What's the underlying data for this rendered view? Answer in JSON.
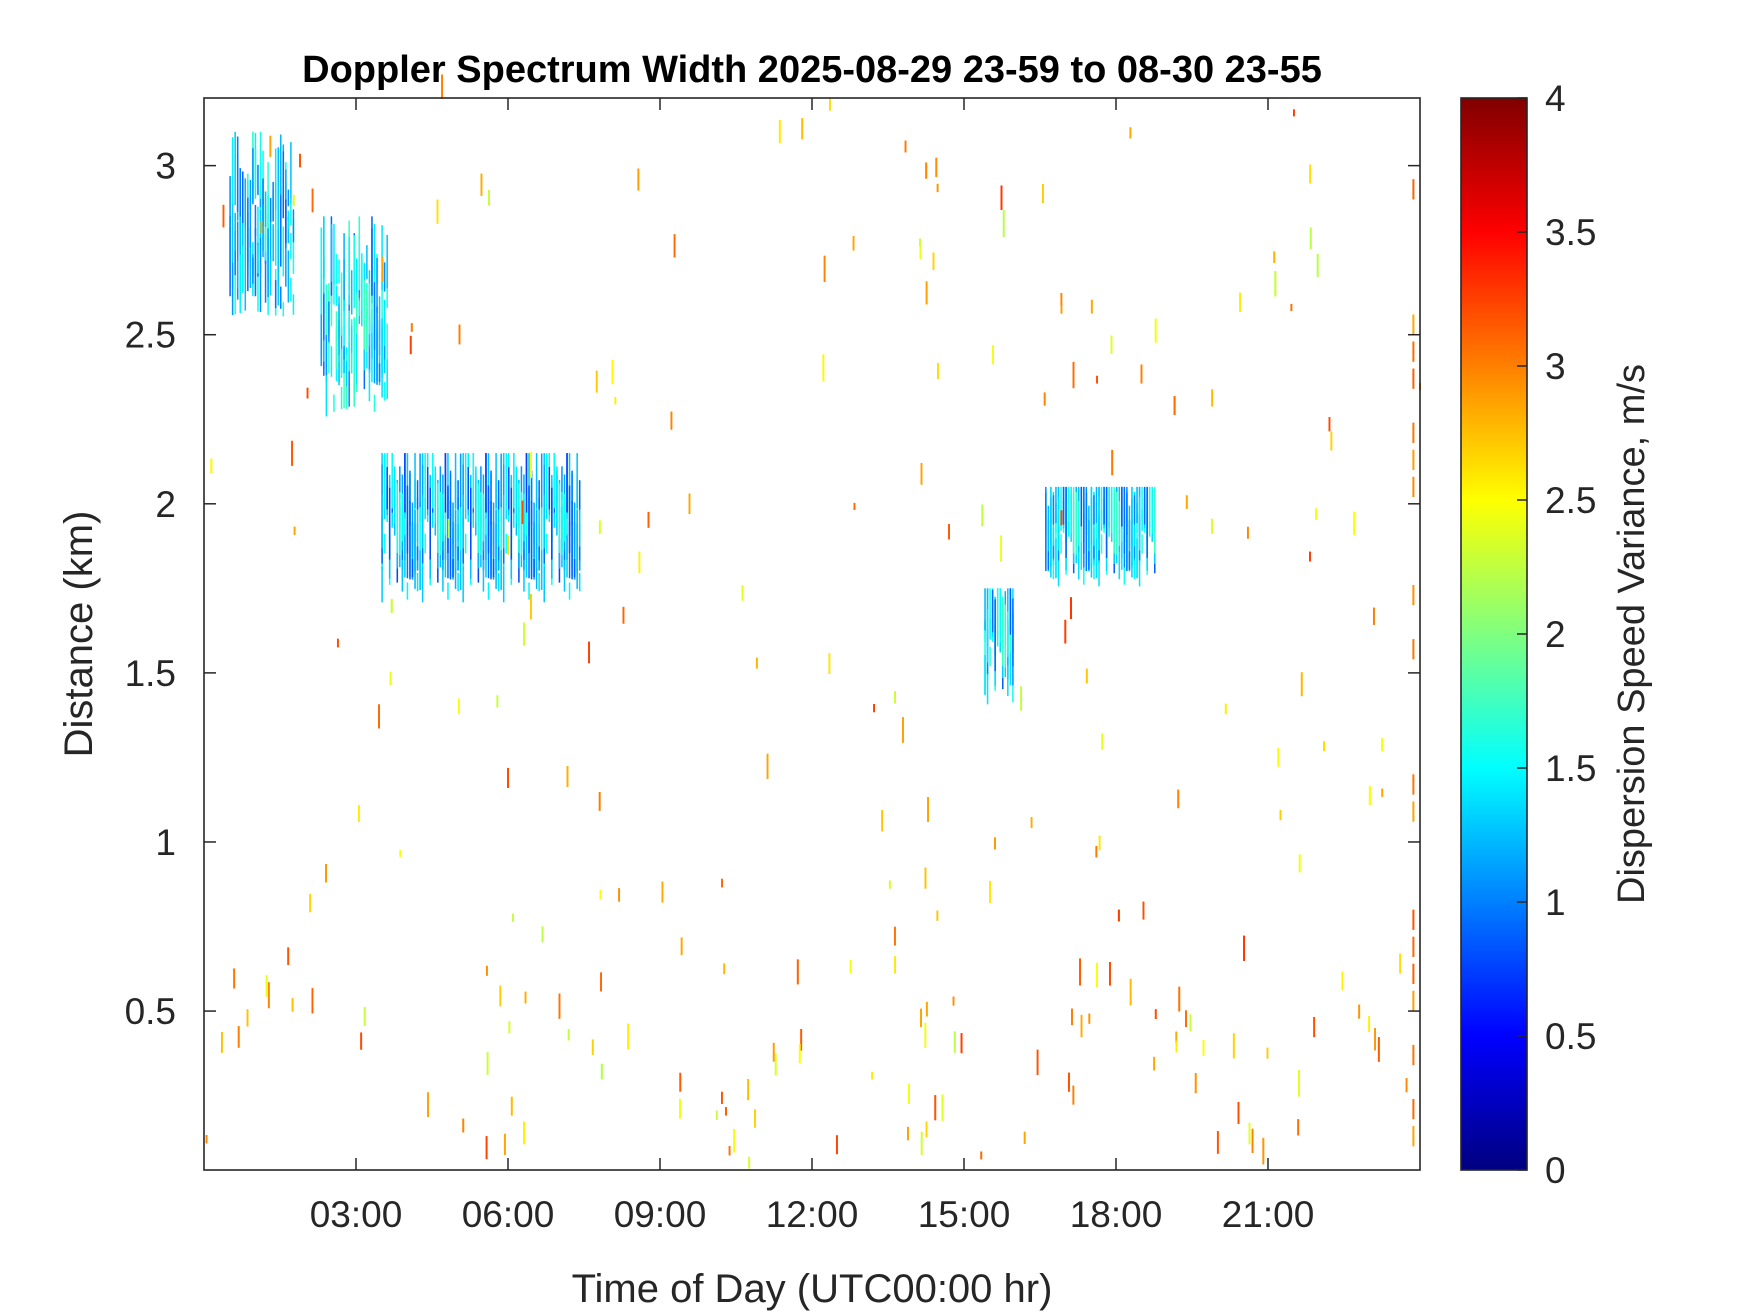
{
  "chart_data": {
    "type": "heatmap",
    "title": "Doppler Spectrum Width 2025-08-29 23-59 to 08-30 23-55",
    "xlabel": "Time of Day (UTC00:00 hr)",
    "ylabel": "Distance (km)",
    "colorbar_label": "Dispersion Speed Variance, m/s",
    "colormap": "jet",
    "xlim_hours": [
      0,
      24
    ],
    "ylim_km": [
      0.03,
      3.2
    ],
    "clim": [
      0,
      4
    ],
    "x_ticks": [
      {
        "value": 3,
        "label": "03:00"
      },
      {
        "value": 6,
        "label": "06:00"
      },
      {
        "value": 9,
        "label": "09:00"
      },
      {
        "value": 12,
        "label": "12:00"
      },
      {
        "value": 15,
        "label": "15:00"
      },
      {
        "value": 18,
        "label": "18:00"
      },
      {
        "value": 21,
        "label": "21:00"
      }
    ],
    "y_ticks": [
      {
        "value": 0.5,
        "label": "0.5"
      },
      {
        "value": 1,
        "label": "1"
      },
      {
        "value": 1.5,
        "label": "1.5"
      },
      {
        "value": 2,
        "label": "2"
      },
      {
        "value": 2.5,
        "label": "2.5"
      },
      {
        "value": 3,
        "label": "3"
      }
    ],
    "colorbar_ticks": [
      {
        "value": 0,
        "label": "0"
      },
      {
        "value": 0.5,
        "label": "0.5"
      },
      {
        "value": 1,
        "label": "1"
      },
      {
        "value": 1.5,
        "label": "1.5"
      },
      {
        "value": 2,
        "label": "2"
      },
      {
        "value": 2.5,
        "label": "2.5"
      },
      {
        "value": 3,
        "label": "3"
      },
      {
        "value": 3.5,
        "label": "3.5"
      },
      {
        "value": 4,
        "label": "4"
      }
    ],
    "regions": [
      {
        "t_start": 0.5,
        "t_end": 1.8,
        "km_low": 2.55,
        "km_high": 3.1,
        "value": 1.3
      },
      {
        "t_start": 2.3,
        "t_end": 3.6,
        "km_low": 2.25,
        "km_high": 2.85,
        "value": 1.35
      },
      {
        "t_start": 3.5,
        "t_end": 7.4,
        "km_low": 1.7,
        "km_high": 2.15,
        "value": 1.2
      },
      {
        "t_start": 15.4,
        "t_end": 16.0,
        "km_low": 1.4,
        "km_high": 1.75,
        "value": 1.3
      },
      {
        "t_start": 16.6,
        "t_end": 18.8,
        "km_low": 1.75,
        "km_high": 2.05,
        "value": 1.3
      }
    ]
  }
}
